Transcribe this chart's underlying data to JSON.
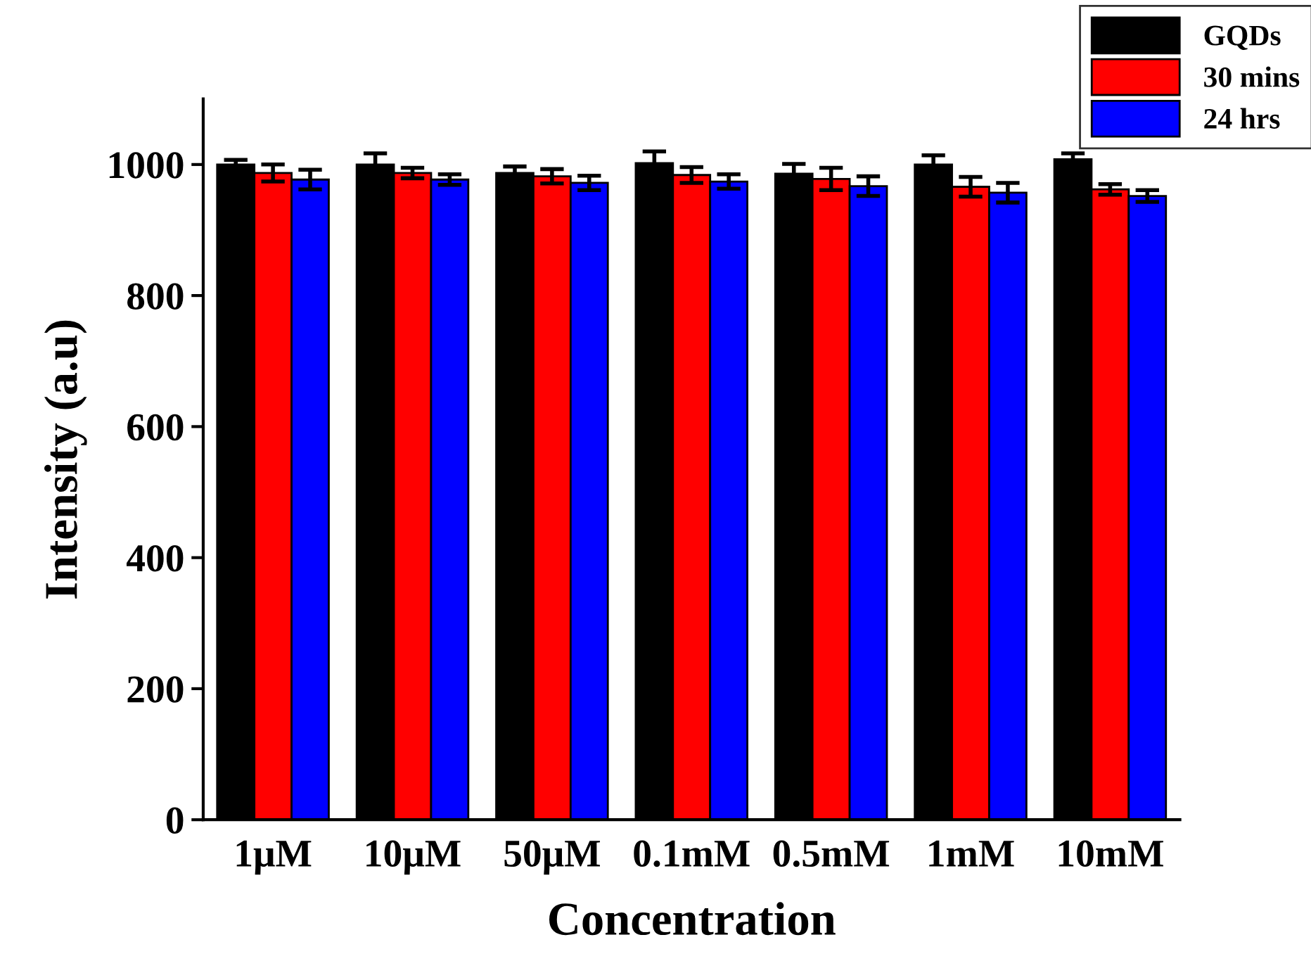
{
  "chart_data": {
    "type": "bar",
    "xlabel": "Concentration",
    "ylabel": "Intensity (a.u)",
    "categories": [
      "1μM",
      "10μM",
      "50μM",
      "0.1mM",
      "0.5mM",
      "1mM",
      "10mM"
    ],
    "series": [
      {
        "name": "GQDs",
        "color": "#000000",
        "values": [
          1000,
          1000,
          987,
          1002,
          986,
          1000,
          1008
        ],
        "errors": [
          7,
          17,
          10,
          18,
          15,
          14,
          9
        ]
      },
      {
        "name": "30 mins",
        "color": "#ff0000",
        "values": [
          987,
          987,
          982,
          984,
          978,
          966,
          962
        ],
        "errors": [
          13,
          8,
          11,
          12,
          17,
          15,
          8
        ]
      },
      {
        "name": "24 hrs",
        "color": "#0000ff",
        "values": [
          977,
          977,
          972,
          974,
          967,
          957,
          952
        ],
        "errors": [
          15,
          8,
          11,
          11,
          15,
          15,
          9
        ]
      }
    ],
    "ylim": [
      0,
      1100
    ],
    "yticks": [
      0,
      200,
      400,
      600,
      800,
      1000
    ],
    "grid": false,
    "legend": "top right"
  }
}
